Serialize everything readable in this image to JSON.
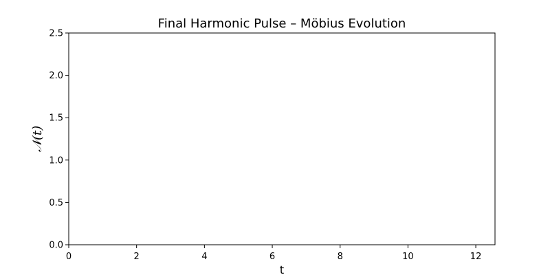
{
  "chart_data": {
    "type": "line",
    "title": "Final Harmonic Pulse – Möbius Evolution",
    "xlabel": "t",
    "ylabel": "𝒩(t)",
    "xlim": [
      0,
      12.566
    ],
    "ylim": [
      0,
      2.5
    ],
    "xticks": [
      0,
      2,
      4,
      6,
      8,
      10,
      12
    ],
    "yticks": [
      0.0,
      0.5,
      1.0,
      1.5,
      2.0,
      2.5
    ],
    "xtick_labels": [
      "0",
      "2",
      "4",
      "6",
      "8",
      "10",
      "12"
    ],
    "ytick_labels": [
      "0.0",
      "0.5",
      "1.0",
      "1.5",
      "2.0",
      "2.5"
    ],
    "series": [],
    "grid": false,
    "legend": "none"
  }
}
